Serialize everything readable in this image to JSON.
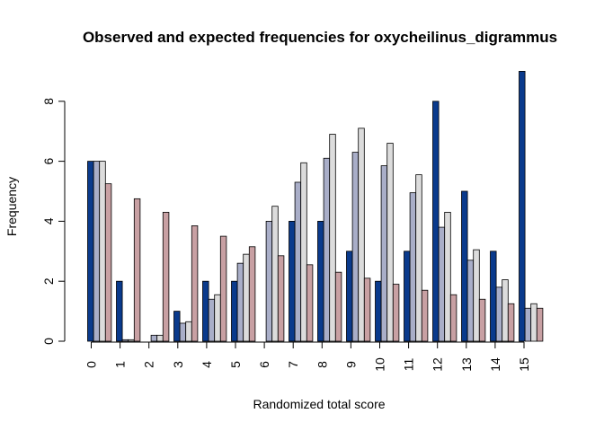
{
  "chart_data": {
    "type": "bar",
    "title": "Observed and expected frequencies for oxycheilinus_digrammus",
    "xlabel": "Randomized total score",
    "ylabel": "Frequency",
    "ylim": [
      0,
      9
    ],
    "yticks": [
      0,
      2,
      4,
      6,
      8
    ],
    "grid": false,
    "legend": "none",
    "categories": [
      "0",
      "1",
      "2",
      "3",
      "4",
      "5",
      "6",
      "7",
      "8",
      "9",
      "10",
      "11",
      "12",
      "13",
      "14",
      "15"
    ],
    "series": [
      {
        "color": "#0a3a8c",
        "values": [
          6,
          2,
          0,
          1,
          2,
          2,
          0,
          4,
          4,
          3,
          2,
          3,
          8,
          5,
          3,
          9
        ]
      },
      {
        "color": "#a9aec8",
        "values": [
          6.0,
          0.05,
          0.2,
          0.6,
          1.4,
          2.6,
          4.0,
          5.3,
          6.1,
          6.3,
          5.85,
          4.95,
          3.8,
          2.7,
          1.8,
          1.1
        ]
      },
      {
        "color": "#dcdcdc",
        "values": [
          6.0,
          0.05,
          0.2,
          0.65,
          1.55,
          2.9,
          4.5,
          5.95,
          6.9,
          7.1,
          6.6,
          5.55,
          4.3,
          3.05,
          2.05,
          1.25
        ]
      },
      {
        "color": "#c8a0a3",
        "values": [
          5.25,
          4.75,
          4.3,
          3.85,
          3.5,
          3.15,
          2.85,
          2.55,
          2.3,
          2.1,
          1.9,
          1.7,
          1.55,
          1.4,
          1.25,
          1.1
        ]
      }
    ]
  }
}
